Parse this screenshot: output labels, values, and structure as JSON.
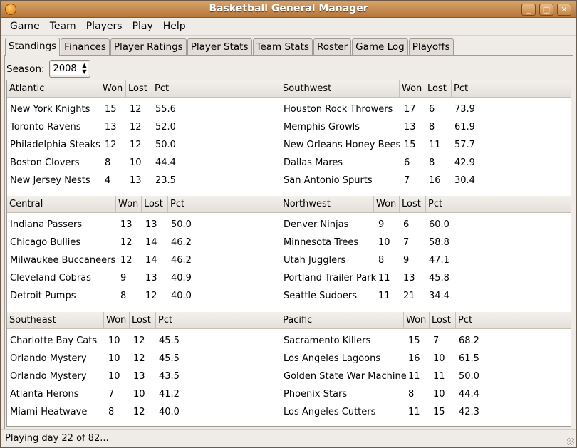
{
  "window": {
    "title": "Basketball General Manager"
  },
  "menu": [
    "Game",
    "Team",
    "Players",
    "Play",
    "Help"
  ],
  "tabs": [
    "Standings",
    "Finances",
    "Player Ratings",
    "Player Stats",
    "Team Stats",
    "Roster",
    "Game Log",
    "Playoffs"
  ],
  "season": {
    "label": "Season:",
    "value": "2008"
  },
  "columns": {
    "won": "Won",
    "lost": "Lost",
    "pct": "Pct"
  },
  "divisions": [
    {
      "name": "Atlantic",
      "teams": [
        [
          "New York Knights",
          "15",
          "12",
          "55.6"
        ],
        [
          "Toronto Ravens",
          "13",
          "12",
          "52.0"
        ],
        [
          "Philadelphia Steaks",
          "12",
          "12",
          "50.0"
        ],
        [
          "Boston Clovers",
          "8",
          "10",
          "44.4"
        ],
        [
          "New Jersey Nests",
          "4",
          "13",
          "23.5"
        ]
      ]
    },
    {
      "name": "Southwest",
      "teams": [
        [
          "Houston Rock Throwers",
          "17",
          "6",
          "73.9"
        ],
        [
          "Memphis Growls",
          "13",
          "8",
          "61.9"
        ],
        [
          "New Orleans Honey Bees",
          "15",
          "11",
          "57.7"
        ],
        [
          "Dallas Mares",
          "6",
          "8",
          "42.9"
        ],
        [
          "San Antonio Spurts",
          "7",
          "16",
          "30.4"
        ]
      ]
    },
    {
      "name": "Central",
      "teams": [
        [
          "Indiana Passers",
          "13",
          "13",
          "50.0"
        ],
        [
          "Chicago Bullies",
          "12",
          "14",
          "46.2"
        ],
        [
          "Milwaukee Buccaneers",
          "12",
          "14",
          "46.2"
        ],
        [
          "Cleveland Cobras",
          "9",
          "13",
          "40.9"
        ],
        [
          "Detroit Pumps",
          "8",
          "12",
          "40.0"
        ]
      ]
    },
    {
      "name": "Northwest",
      "teams": [
        [
          "Denver Ninjas",
          "9",
          "6",
          "60.0"
        ],
        [
          "Minnesota Trees",
          "10",
          "7",
          "58.8"
        ],
        [
          "Utah Jugglers",
          "8",
          "9",
          "47.1"
        ],
        [
          "Portland Trailer Park",
          "11",
          "13",
          "45.8"
        ],
        [
          "Seattle Sudoers",
          "11",
          "21",
          "34.4"
        ]
      ]
    },
    {
      "name": "Southeast",
      "teams": [
        [
          "Charlotte Bay Cats",
          "10",
          "12",
          "45.5"
        ],
        [
          "Orlando Mystery",
          "10",
          "12",
          "45.5"
        ],
        [
          "Orlando Mystery",
          "10",
          "13",
          "43.5"
        ],
        [
          "Atlanta Herons",
          "7",
          "10",
          "41.2"
        ],
        [
          "Miami Heatwave",
          "8",
          "12",
          "40.0"
        ]
      ]
    },
    {
      "name": "Pacific",
      "teams": [
        [
          "Sacramento Killers",
          "15",
          "7",
          "68.2"
        ],
        [
          "Los Angeles Lagoons",
          "16",
          "10",
          "61.5"
        ],
        [
          "Golden State War Machine",
          "11",
          "11",
          "50.0"
        ],
        [
          "Phoenix Stars",
          "8",
          "10",
          "44.4"
        ],
        [
          "Los Angeles Cutters",
          "11",
          "15",
          "42.3"
        ]
      ]
    }
  ],
  "status": "Playing day 22 of 82..."
}
